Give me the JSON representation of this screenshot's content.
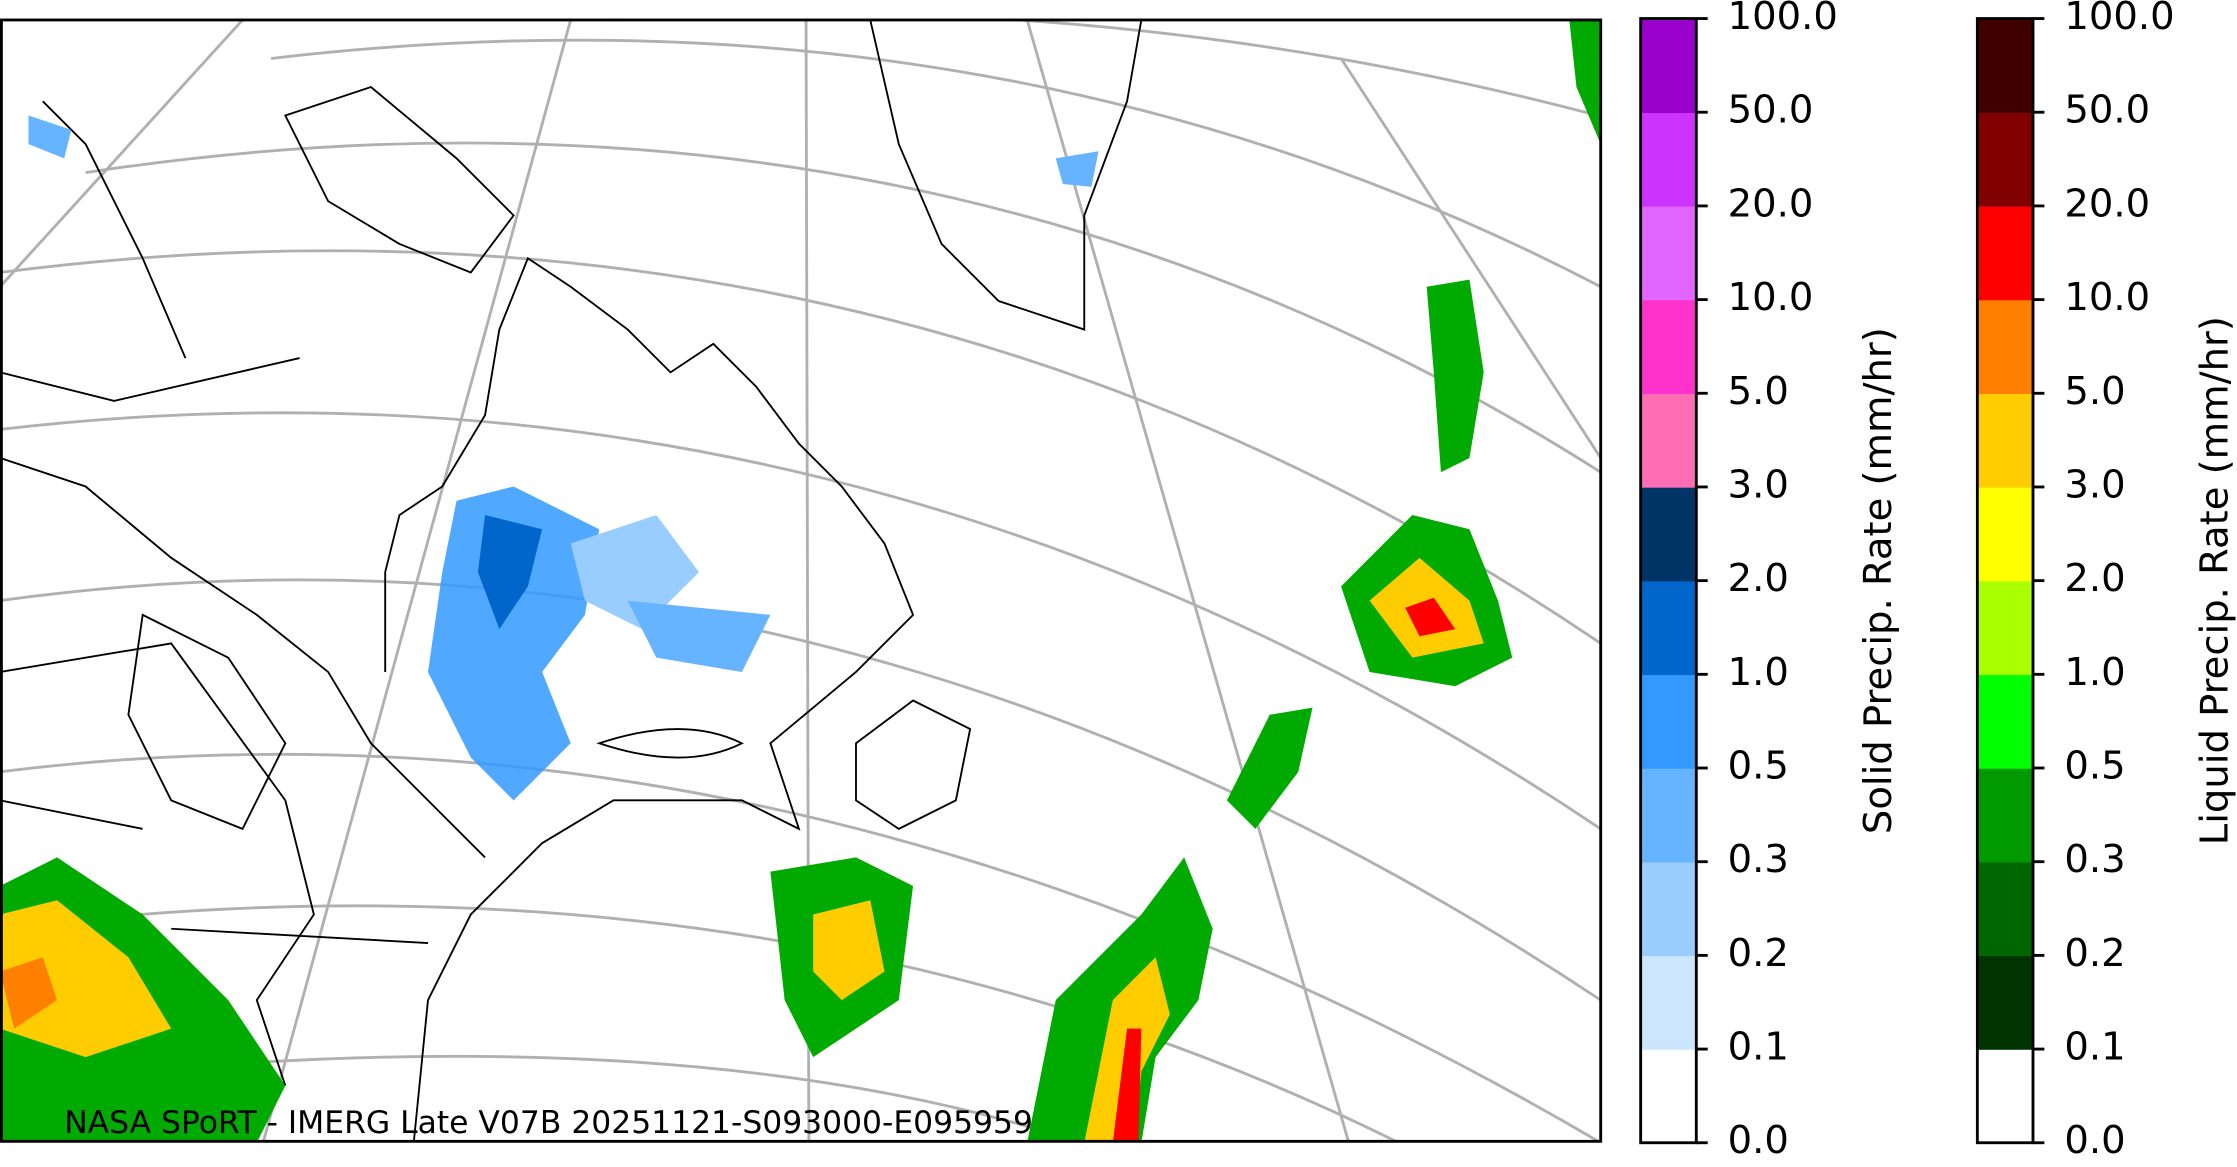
{
  "map": {
    "credit": "NASA SPoRT - IMERG Late V07B 20251121-S093000-E095959"
  },
  "colorbars": [
    {
      "label": "Solid Precip. Rate (mm/hr)",
      "ticks": [
        "0.0",
        "0.1",
        "0.2",
        "0.3",
        "0.5",
        "1.0",
        "2.0",
        "3.0",
        "5.0",
        "10.0",
        "20.0",
        "50.0",
        "100.0"
      ],
      "colors": [
        "#ffffff",
        "#cce6ff",
        "#99ccff",
        "#66b3ff",
        "#3399ff",
        "#0066cc",
        "#003366",
        "#ff6eb4",
        "#ff33cc",
        "#e066ff",
        "#cc33ff",
        "#9900cc"
      ]
    },
    {
      "label": "Liquid Precip. Rate (mm/hr)",
      "ticks": [
        "0.0",
        "0.1",
        "0.2",
        "0.3",
        "0.5",
        "1.0",
        "2.0",
        "3.0",
        "5.0",
        "10.0",
        "20.0",
        "50.0",
        "100.0"
      ],
      "colors": [
        "#ffffff",
        "#003300",
        "#006600",
        "#009900",
        "#00ff00",
        "#aaff00",
        "#ffff00",
        "#ffcc00",
        "#ff8000",
        "#ff0000",
        "#800000",
        "#400000"
      ]
    }
  ]
}
